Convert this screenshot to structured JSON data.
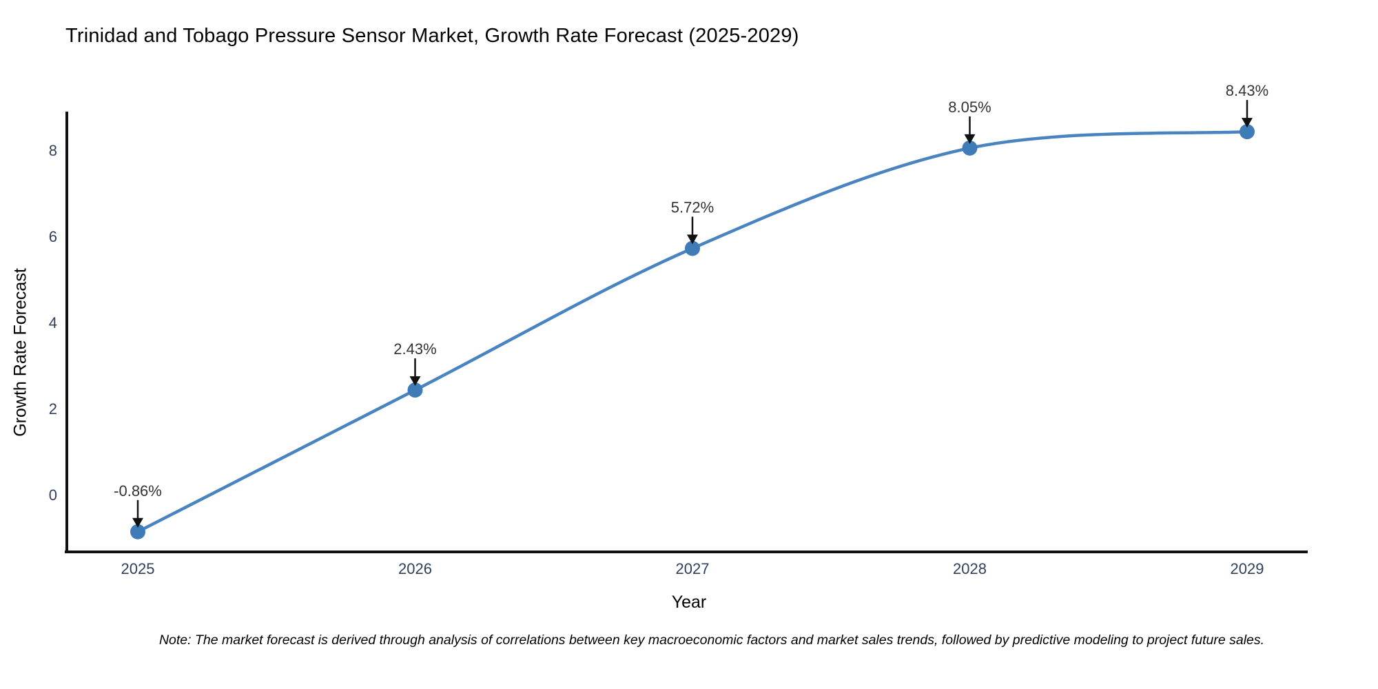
{
  "chart_data": {
    "type": "line",
    "title": "Trinidad and Tobago Pressure Sensor Market, Growth Rate Forecast (2025-2029)",
    "xlabel": "Year",
    "ylabel": "Growth Rate Forecast",
    "x": [
      2025,
      2026,
      2027,
      2028,
      2029
    ],
    "y": [
      -0.86,
      2.43,
      5.72,
      8.05,
      8.43
    ],
    "point_labels": [
      "-0.86%",
      "2.43%",
      "5.72%",
      "8.05%",
      "8.43%"
    ],
    "x_tick_labels": [
      "2025",
      "2026",
      "2027",
      "2028",
      "2029"
    ],
    "y_tick_labels": [
      "0",
      "2",
      "4",
      "6",
      "8"
    ],
    "y_tick_values": [
      0,
      2,
      4,
      6,
      8
    ],
    "ylim": [
      -1.33,
      8.9
    ],
    "xlim": [
      2024.74,
      2029.22
    ],
    "grid": false,
    "legend_position": "none",
    "marker_style": "circle",
    "annotation_arrows": true,
    "colors": {
      "line": "#4a84c0",
      "marker": "#3e7cb8",
      "axis": "#101010",
      "title_text": "#2b3d5c",
      "tick_text": "#2e3f5c",
      "annotation_text": "#333333",
      "arrow": "#111111",
      "note_text": "#000000",
      "background": "#ffffff"
    }
  },
  "footnote": {
    "text": "Note: The market forecast is derived through analysis of correlations between key macroeconomic factors and market sales trends, followed by predictive modeling to project future sales."
  }
}
